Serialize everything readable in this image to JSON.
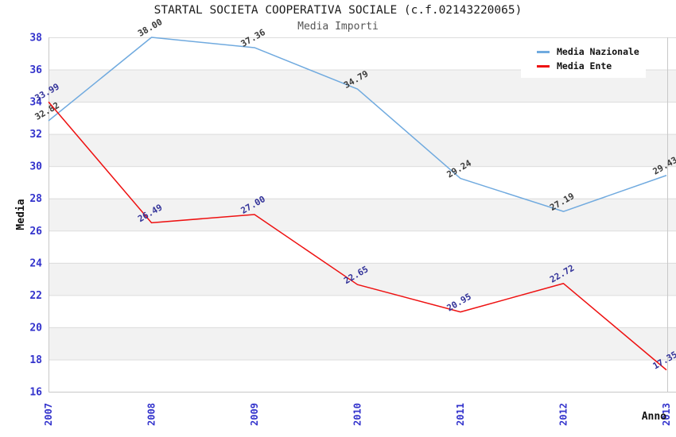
{
  "header": {
    "title": "STARTAL SOCIETA COOPERATIVA SOCIALE (c.f.02143220065)",
    "subtitle": "Media Importi"
  },
  "chart_data": {
    "type": "line",
    "categories": [
      "2007",
      "2008",
      "2009",
      "2010",
      "2011",
      "2012",
      "2013"
    ],
    "series": [
      {
        "name": "Media Nazionale",
        "color": "#70aadf",
        "label_color": "#3a3a3a",
        "values": [
          32.82,
          38.0,
          37.36,
          34.79,
          29.24,
          27.19,
          29.43
        ]
      },
      {
        "name": "Media Ente",
        "color": "#ee1111",
        "label_color": "#333399",
        "values": [
          33.99,
          26.49,
          27.0,
          22.65,
          20.95,
          22.72,
          17.35
        ]
      }
    ],
    "xlabel": "Anno",
    "ylabel": "Media",
    "ylim": [
      16,
      38
    ],
    "ytick_step": 2,
    "yticks": [
      16,
      18,
      20,
      22,
      24,
      26,
      28,
      30,
      32,
      34,
      36,
      38
    ],
    "axis_tick_color": "#3333cc",
    "band_color": "#f2f2f2",
    "grid_color": "#dcdcdc",
    "border_color": "#c8c8c8",
    "axis_title_color": "#111111",
    "grid": true,
    "legend_position": "top-right"
  }
}
